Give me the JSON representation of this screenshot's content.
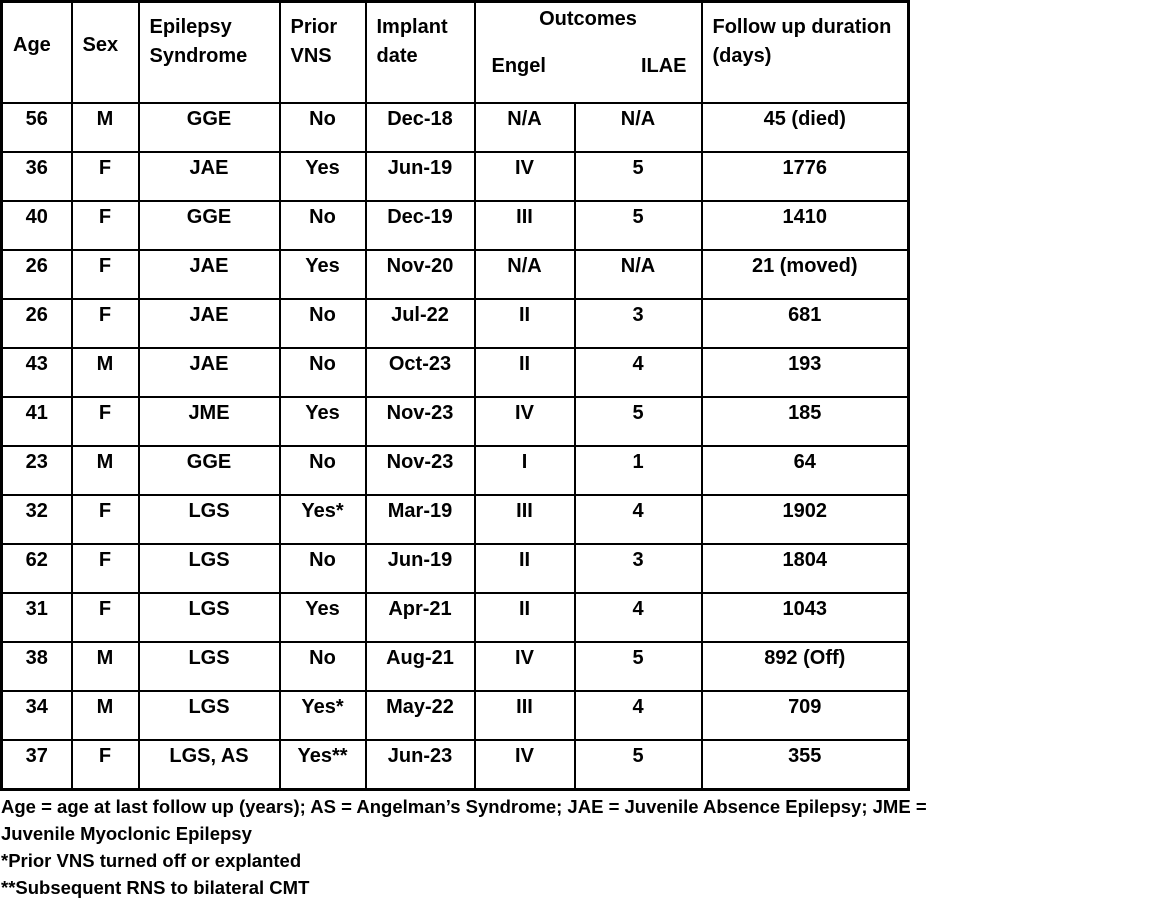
{
  "table": {
    "headers": {
      "age": "Age",
      "sex": "Sex",
      "syndrome": "Epilepsy Syndrome",
      "vns": "Prior VNS",
      "implant": "Implant date",
      "outcomes": "Outcomes",
      "engel": "Engel",
      "ilae": "ILAE",
      "followup": "Follow up duration (days)"
    },
    "rows": [
      [
        "56",
        "M",
        "GGE",
        "No",
        "Dec-18",
        "N/A",
        "N/A",
        "45 (died)"
      ],
      [
        "36",
        "F",
        "JAE",
        "Yes",
        "Jun-19",
        "IV",
        "5",
        "1776"
      ],
      [
        "40",
        "F",
        "GGE",
        "No",
        "Dec-19",
        "III",
        "5",
        "1410"
      ],
      [
        "26",
        "F",
        "JAE",
        "Yes",
        "Nov-20",
        "N/A",
        "N/A",
        "21 (moved)"
      ],
      [
        "26",
        "F",
        "JAE",
        "No",
        "Jul-22",
        "II",
        "3",
        "681"
      ],
      [
        "43",
        "M",
        "JAE",
        "No",
        "Oct-23",
        "II",
        "4",
        "193"
      ],
      [
        "41",
        "F",
        "JME",
        "Yes",
        "Nov-23",
        "IV",
        "5",
        "185"
      ],
      [
        "23",
        "M",
        "GGE",
        "No",
        "Nov-23",
        "I",
        "1",
        "64"
      ],
      [
        "32",
        "F",
        "LGS",
        "Yes*",
        "Mar-19",
        "III",
        "4",
        "1902"
      ],
      [
        "62",
        "F",
        "LGS",
        "No",
        "Jun-19",
        "II",
        "3",
        "1804"
      ],
      [
        "31",
        "F",
        "LGS",
        "Yes",
        "Apr-21",
        "II",
        "4",
        "1043"
      ],
      [
        "38",
        "M",
        "LGS",
        "No",
        "Aug-21",
        "IV",
        "5",
        "892 (Off)"
      ],
      [
        "34",
        "M",
        "LGS",
        "Yes*",
        "May-22",
        "III",
        "4",
        "709"
      ],
      [
        "37",
        "F",
        "LGS, AS",
        "Yes**",
        "Jun-23",
        "IV",
        "5",
        "355"
      ]
    ]
  },
  "notes": [
    "Age = age at last follow up (years); AS = Angelman’s Syndrome; JAE = Juvenile Absence Epilepsy; JME = Juvenile Myoclonic Epilepsy",
    "*Prior VNS turned off or explanted",
    "**Subsequent RNS to bilateral CMT"
  ]
}
